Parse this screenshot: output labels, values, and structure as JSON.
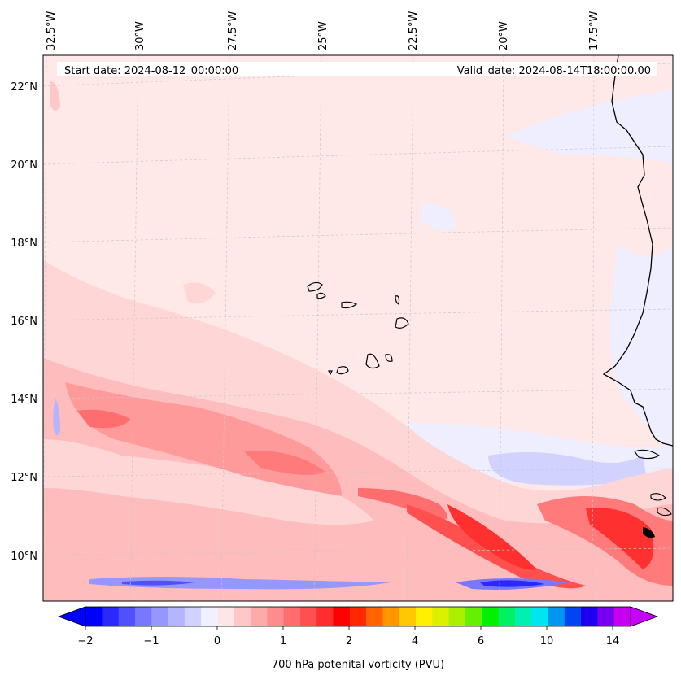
{
  "header": {
    "start_date": "Start date: 2024-08-12_00:00:00",
    "valid_date": "Valid_date: 2024-08-14T18:00:00.00"
  },
  "map": {
    "lon_labels": [
      "32.5°W",
      "30°W",
      "27.5°W",
      "25°W",
      "22.5°W",
      "20°W",
      "17.5°W"
    ],
    "lat_labels": [
      "22°N",
      "20°N",
      "18°N",
      "16°N",
      "14°N",
      "12°N",
      "10°N"
    ],
    "colors": {
      "coast": "#000000",
      "grid": "#c8c8c8",
      "background_field": "#ffe8e8"
    }
  },
  "colorbar": {
    "label": "700 hPa potenital vorticity (PVU)",
    "tick_labels": [
      "−2",
      "−1",
      "0",
      "1",
      "2",
      "4",
      "6",
      "10",
      "14"
    ],
    "colors": [
      "#0000ff",
      "#2828ff",
      "#5050ff",
      "#7878ff",
      "#9696ff",
      "#b4b4ff",
      "#d2d2ff",
      "#f0f0ff",
      "#ffe6e6",
      "#ffc8c8",
      "#ffaaaa",
      "#ff8c8c",
      "#ff6e6e",
      "#ff5050",
      "#ff2d2d",
      "#ff0000",
      "#ff2800",
      "#ff6400",
      "#ff9600",
      "#ffc800",
      "#fff000",
      "#dcf000",
      "#aaf000",
      "#64f000",
      "#00f000",
      "#00f064",
      "#00f0b4",
      "#00e6f0",
      "#0096f0",
      "#0046f0",
      "#1e00f0",
      "#7800f0",
      "#c800f0"
    ],
    "arrow_left_color": "#0000ff",
    "arrow_right_color": "#c800ff"
  }
}
